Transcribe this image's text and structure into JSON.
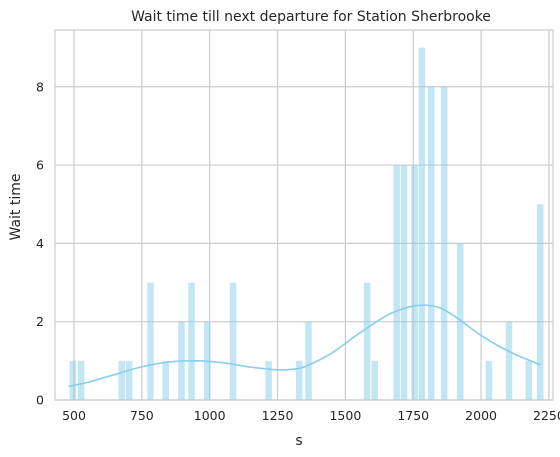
{
  "chart_data": {
    "type": "bar",
    "title": "Wait time till next departure for Station Sherbrooke",
    "xlabel": "s",
    "ylabel": "Wait time",
    "xlim": [
      430,
      2265
    ],
    "ylim": [
      0,
      9.45
    ],
    "x_ticks": [
      500,
      750,
      1000,
      1250,
      1500,
      1750,
      2000,
      2250
    ],
    "y_ticks": [
      0,
      2,
      4,
      6,
      8
    ],
    "grid": true,
    "bar_color": "#87ceeb",
    "kde_color": "#87ceeb",
    "bins": [
      {
        "start": 484,
        "end": 508,
        "count": 1
      },
      {
        "start": 514,
        "end": 538,
        "count": 1
      },
      {
        "start": 664,
        "end": 688,
        "count": 1
      },
      {
        "start": 691,
        "end": 715,
        "count": 1
      },
      {
        "start": 770,
        "end": 794,
        "count": 3
      },
      {
        "start": 826,
        "end": 850,
        "count": 1
      },
      {
        "start": 884,
        "end": 908,
        "count": 2
      },
      {
        "start": 921,
        "end": 945,
        "count": 3
      },
      {
        "start": 979,
        "end": 1003,
        "count": 2
      },
      {
        "start": 1074,
        "end": 1098,
        "count": 3
      },
      {
        "start": 1205,
        "end": 1229,
        "count": 1
      },
      {
        "start": 1318,
        "end": 1342,
        "count": 1
      },
      {
        "start": 1352,
        "end": 1376,
        "count": 2
      },
      {
        "start": 1568,
        "end": 1592,
        "count": 3
      },
      {
        "start": 1596,
        "end": 1620,
        "count": 1
      },
      {
        "start": 1677,
        "end": 1701,
        "count": 6
      },
      {
        "start": 1704,
        "end": 1728,
        "count": 6
      },
      {
        "start": 1743,
        "end": 1767,
        "count": 6
      },
      {
        "start": 1770,
        "end": 1794,
        "count": 9
      },
      {
        "start": 1804,
        "end": 1828,
        "count": 8
      },
      {
        "start": 1852,
        "end": 1876,
        "count": 8
      },
      {
        "start": 1911,
        "end": 1935,
        "count": 4
      },
      {
        "start": 2017,
        "end": 2041,
        "count": 1
      },
      {
        "start": 2091,
        "end": 2115,
        "count": 2
      },
      {
        "start": 2164,
        "end": 2188,
        "count": 1
      },
      {
        "start": 2206,
        "end": 2230,
        "count": 5
      }
    ],
    "kde": {
      "x": [
        480,
        550,
        650,
        750,
        850,
        950,
        1050,
        1150,
        1250,
        1300,
        1350,
        1450,
        1550,
        1650,
        1700,
        1750,
        1800,
        1850,
        1900,
        2000,
        2100,
        2200,
        2220
      ],
      "y": [
        0.35,
        0.45,
        0.65,
        0.85,
        0.97,
        1.0,
        0.95,
        0.84,
        0.77,
        0.78,
        0.85,
        1.2,
        1.7,
        2.15,
        2.3,
        2.4,
        2.42,
        2.35,
        2.15,
        1.65,
        1.25,
        0.95,
        0.9
      ]
    }
  }
}
